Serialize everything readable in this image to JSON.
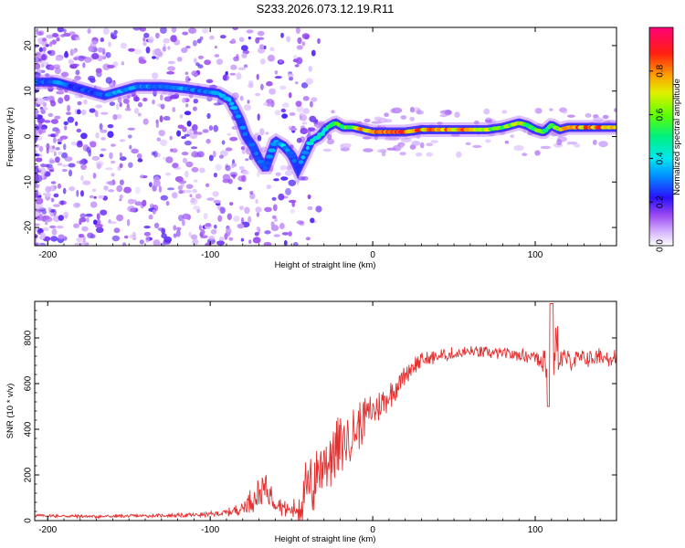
{
  "figure_title": "S233.2026.073.12.19.R11",
  "chart_data": [
    {
      "type": "heatmap",
      "title": "S233.2026.073.12.19.R11",
      "xlabel": "Height of straight line (km)",
      "ylabel": "Frequency (Hz)",
      "xlim": [
        -208,
        150
      ],
      "ylim": [
        -24,
        24
      ],
      "xticks": [
        -200,
        -100,
        0,
        100
      ],
      "yticks": [
        -20,
        -10,
        0,
        10,
        20
      ],
      "colorbar": {
        "label": "Normalized spectral amplitude",
        "range": [
          0,
          1
        ],
        "ticks": [
          0.0,
          0.2,
          0.4,
          0.6,
          0.8
        ],
        "tick_labels": [
          "0.0",
          "0.2",
          "0.4",
          "0.6",
          "0.8"
        ],
        "colormap": [
          "#ffffff",
          "#c8a0ff",
          "#7a2ae6",
          "#1010ff",
          "#00e8ff",
          "#00ff60",
          "#c8ff00",
          "#ffa000",
          "#ff2020",
          "#ff0078"
        ]
      },
      "ridge": {
        "x": [
          -208,
          -195,
          -185,
          -175,
          -165,
          -155,
          -145,
          -130,
          -115,
          -105,
          -95,
          -88,
          -82,
          -78,
          -74,
          -70,
          -66,
          -63,
          -60,
          -55,
          -50,
          -46,
          -42,
          -38,
          -33,
          -28,
          -23,
          -18,
          -12,
          -6,
          0,
          10,
          20,
          30,
          40,
          50,
          60,
          70,
          80,
          85,
          90,
          95,
          100,
          105,
          110,
          115,
          120,
          130,
          140,
          150
        ],
        "freq": [
          12,
          12,
          11,
          10,
          9,
          10,
          11,
          11,
          10.5,
          10,
          9.5,
          8,
          4,
          0,
          -2,
          -5,
          -7,
          -4,
          -1,
          -2,
          -4,
          -7,
          -4,
          -1,
          0,
          2,
          3,
          2,
          2,
          1.5,
          1,
          1,
          1,
          1.5,
          1.5,
          1.5,
          1.5,
          1.5,
          2,
          2.5,
          3,
          2.5,
          1.5,
          1,
          2.5,
          1.5,
          2,
          2,
          2,
          2
        ],
        "amplitude": [
          0.3,
          0.35,
          0.25,
          0.3,
          0.3,
          0.4,
          0.35,
          0.35,
          0.35,
          0.3,
          0.35,
          0.4,
          0.35,
          0.3,
          0.3,
          0.35,
          0.3,
          0.4,
          0.35,
          0.4,
          0.35,
          0.3,
          0.4,
          0.45,
          0.5,
          0.55,
          0.6,
          0.6,
          0.7,
          0.85,
          0.9,
          0.95,
          0.9,
          0.85,
          0.85,
          0.85,
          0.85,
          0.7,
          0.65,
          0.7,
          0.75,
          0.65,
          0.6,
          0.6,
          0.7,
          0.7,
          0.85,
          0.9,
          0.9,
          0.9
        ]
      }
    },
    {
      "type": "line",
      "xlabel": "Height of straight line (km)",
      "ylabel": "SNR (10 * v/v)",
      "xlim": [
        -208,
        150
      ],
      "ylim": [
        0,
        960
      ],
      "xticks": [
        -200,
        -100,
        0,
        100
      ],
      "yticks": [
        0,
        200,
        400,
        600,
        800
      ],
      "series": [
        {
          "name": "SNR",
          "color": "#e53030",
          "x": [
            -208,
            -190,
            -170,
            -150,
            -130,
            -110,
            -100,
            -90,
            -80,
            -75,
            -70,
            -66,
            -62,
            -58,
            -54,
            -50,
            -46,
            -42,
            -38,
            -35,
            -32,
            -28,
            -24,
            -20,
            -16,
            -12,
            -8,
            -4,
            0,
            4,
            8,
            12,
            16,
            20,
            25,
            30,
            40,
            50,
            60,
            70,
            80,
            90,
            100,
            105,
            108,
            110,
            112,
            115,
            120,
            130,
            140,
            150
          ],
          "y": [
            22,
            20,
            18,
            20,
            22,
            24,
            28,
            34,
            55,
            90,
            120,
            140,
            110,
            80,
            50,
            45,
            55,
            110,
            140,
            200,
            240,
            270,
            300,
            330,
            360,
            380,
            420,
            460,
            480,
            500,
            530,
            560,
            600,
            640,
            680,
            700,
            720,
            730,
            740,
            735,
            730,
            725,
            720,
            710,
            650,
            600,
            780,
            720,
            700,
            710,
            715,
            720
          ],
          "noise_amp": [
            6,
            6,
            6,
            6,
            6,
            8,
            10,
            14,
            25,
            45,
            70,
            80,
            60,
            45,
            30,
            30,
            60,
            120,
            140,
            150,
            140,
            130,
            120,
            110,
            110,
            100,
            90,
            80,
            70,
            60,
            55,
            50,
            45,
            40,
            35,
            30,
            28,
            25,
            22,
            22,
            22,
            25,
            30,
            60,
            130,
            180,
            150,
            60,
            40,
            35,
            35,
            35
          ]
        }
      ]
    }
  ]
}
